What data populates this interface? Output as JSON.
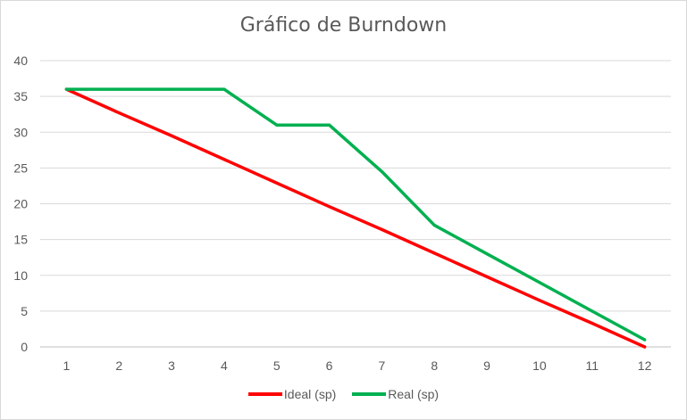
{
  "chart_data": {
    "type": "line",
    "title": "Gráfico de Burndown",
    "xlabel": "",
    "ylabel": "",
    "x": [
      1,
      2,
      3,
      4,
      5,
      6,
      7,
      8,
      9,
      10,
      11,
      12
    ],
    "xlim": [
      0.5,
      12.5
    ],
    "ylim": [
      0,
      40
    ],
    "yticks": [
      0,
      5,
      10,
      15,
      20,
      25,
      30,
      35,
      40
    ],
    "grid": true,
    "legend_position": "bottom",
    "series": [
      {
        "name": "Ideal (sp)",
        "color": "#ff0000",
        "values": [
          36,
          32.7,
          29.5,
          26.2,
          22.9,
          19.6,
          16.4,
          13.1,
          9.8,
          6.5,
          3.3,
          0
        ]
      },
      {
        "name": "Real (sp)",
        "color": "#00b050",
        "values": [
          36,
          36,
          36,
          36,
          31,
          31,
          24.5,
          17,
          13,
          9,
          5,
          1
        ]
      }
    ]
  }
}
